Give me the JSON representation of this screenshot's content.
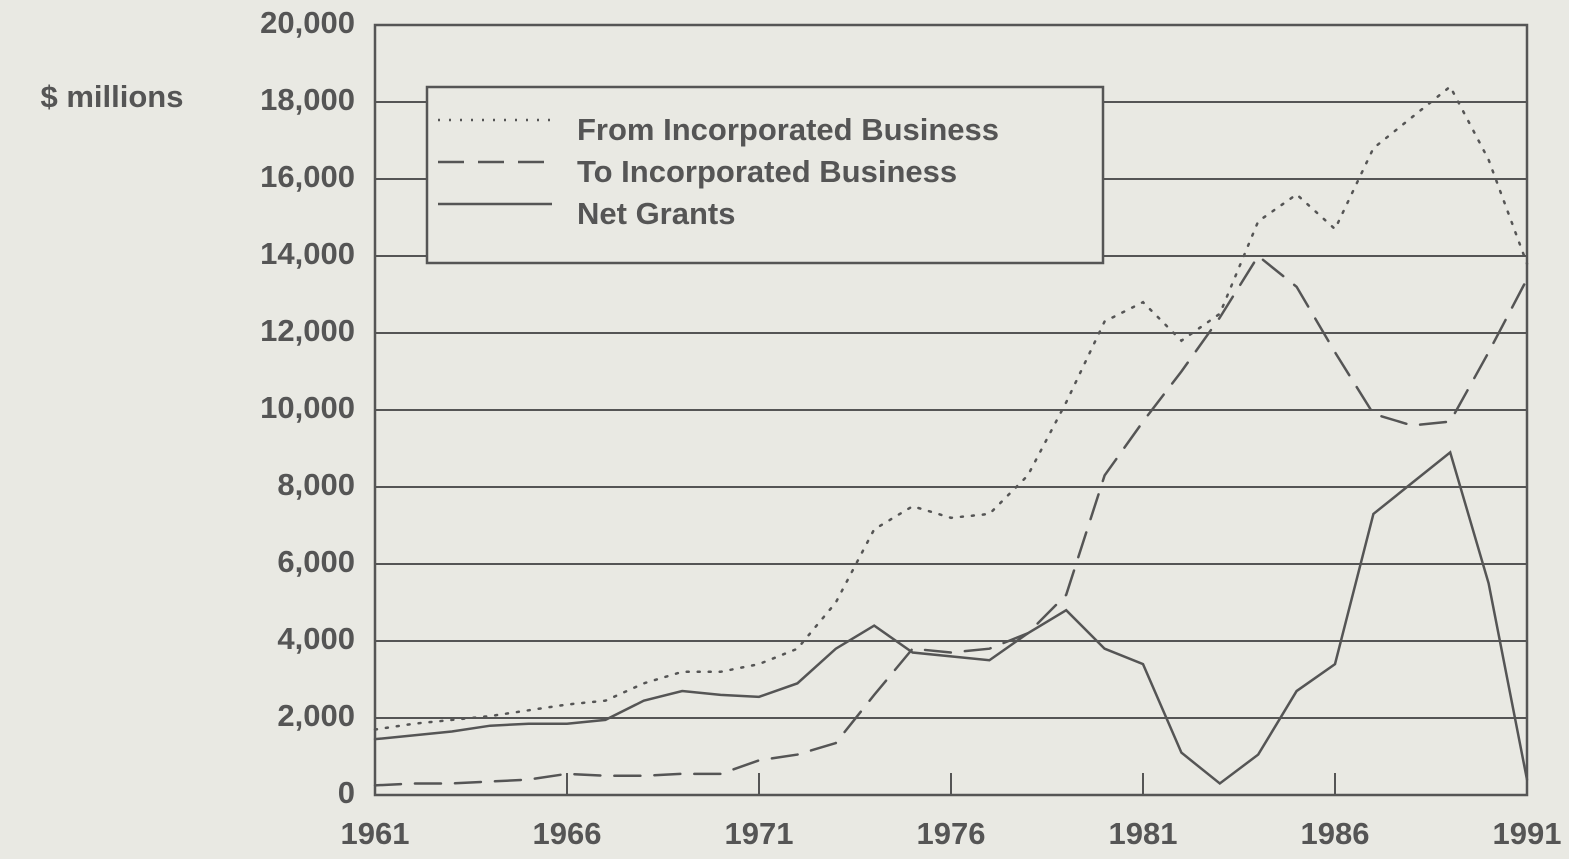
{
  "chart_data": {
    "type": "line",
    "y_label": "$ millions",
    "x": [
      1961,
      1962,
      1963,
      1964,
      1965,
      1966,
      1967,
      1968,
      1969,
      1970,
      1971,
      1972,
      1973,
      1974,
      1975,
      1976,
      1977,
      1978,
      1979,
      1980,
      1981,
      1982,
      1983,
      1984,
      1985,
      1986,
      1987,
      1988,
      1989,
      1990,
      1991
    ],
    "series": [
      {
        "name": "From Incorporated Business",
        "color": "#555555",
        "style": "dotted",
        "values": [
          1700,
          1850,
          1950,
          2050,
          2200,
          2350,
          2450,
          2900,
          3200,
          3200,
          3400,
          3800,
          5000,
          6900,
          7500,
          7200,
          7300,
          8300,
          10200,
          12300,
          12800,
          11800,
          12500,
          14900,
          15600,
          14700,
          16800,
          17600,
          18400,
          16500,
          13800
        ]
      },
      {
        "name": "To Incorporated Business",
        "color": "#555555",
        "style": "dashed",
        "values": [
          250,
          300,
          300,
          350,
          400,
          550,
          500,
          500,
          550,
          550,
          900,
          1050,
          1350,
          2600,
          3800,
          3700,
          3800,
          4200,
          5200,
          8300,
          9700,
          11000,
          12400,
          14000,
          13200,
          11500,
          9900,
          9600,
          9700,
          11500,
          13400
        ]
      },
      {
        "name": "Net Grants",
        "color": "#555555",
        "style": "solid",
        "values": [
          1450,
          1550,
          1650,
          1800,
          1850,
          1850,
          1950,
          2450,
          2700,
          2600,
          2550,
          2900,
          3800,
          4400,
          3700,
          3600,
          3500,
          4200,
          4800,
          3800,
          3400,
          1100,
          300,
          1050,
          2700,
          3400,
          7300,
          8100,
          8900,
          5500,
          400
        ]
      }
    ],
    "xlim": [
      1961,
      1991
    ],
    "xticks": [
      1961,
      1966,
      1971,
      1976,
      1981,
      1986,
      1991
    ],
    "ylim": [
      0,
      20000
    ],
    "yticks": [
      0,
      {
        "value": 2000,
        "label": "2,000"
      },
      {
        "value": 4000,
        "label": "4,000"
      },
      {
        "value": 6000,
        "label": "6,000"
      },
      {
        "value": 8000,
        "label": "8,000"
      },
      {
        "value": 10000,
        "label": "10,000"
      },
      {
        "value": 12000,
        "label": "12,000"
      },
      {
        "value": 14000,
        "label": "14,000"
      },
      {
        "value": 16000,
        "label": "16,000"
      },
      {
        "value": 18000,
        "label": "18,000"
      },
      {
        "value": 20000,
        "label": "20,000"
      }
    ],
    "grid": true,
    "legend": "upper left"
  }
}
